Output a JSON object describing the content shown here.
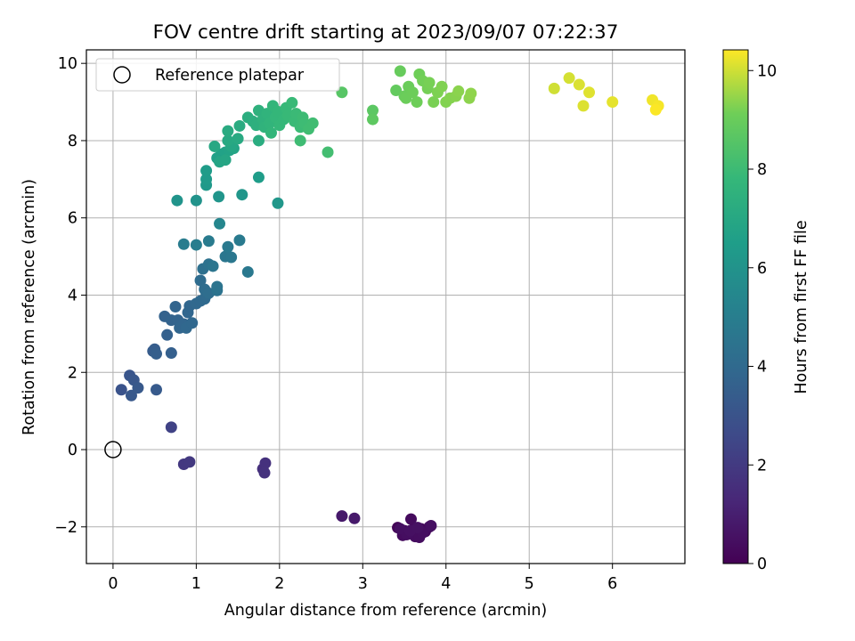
{
  "chart_data": {
    "type": "scatter",
    "title": "FOV centre drift starting at 2023/09/07 07:22:37",
    "xlabel": "Angular distance from reference (arcmin)",
    "ylabel": "Rotation from reference (arcmin)",
    "colorbar_label": "Hours from first FF file",
    "xlim": [
      -0.32,
      6.87
    ],
    "ylim": [
      -2.95,
      10.35
    ],
    "clim": [
      0,
      10.42
    ],
    "xticks": [
      0,
      1,
      2,
      3,
      4,
      5,
      6
    ],
    "yticks": [
      -2,
      0,
      2,
      4,
      6,
      8,
      10
    ],
    "cticks": [
      0,
      2,
      4,
      6,
      8,
      10
    ],
    "grid": true,
    "colormap": "viridis",
    "legend": {
      "position": "top-left",
      "entries": [
        {
          "label": "Reference platepar",
          "marker": "open-circle"
        }
      ]
    },
    "reference": {
      "x": 0,
      "y": 0
    },
    "points": [
      [
        3.42,
        -2.02,
        0.1
      ],
      [
        3.5,
        -2.1,
        0.15
      ],
      [
        3.55,
        -2.15,
        0.18
      ],
      [
        3.6,
        -2.08,
        0.2
      ],
      [
        3.65,
        -2.18,
        0.22
      ],
      [
        3.7,
        -2.05,
        0.25
      ],
      [
        3.75,
        -2.12,
        0.28
      ],
      [
        3.8,
        -2.0,
        0.3
      ],
      [
        3.58,
        -1.8,
        0.32
      ],
      [
        3.48,
        -2.22,
        0.35
      ],
      [
        3.63,
        -2.25,
        0.38
      ],
      [
        3.68,
        -2.27,
        0.4
      ],
      [
        3.53,
        -2.2,
        0.42
      ],
      [
        3.72,
        -2.15,
        0.44
      ],
      [
        3.45,
        -2.05,
        0.46
      ],
      [
        3.82,
        -1.97,
        0.48
      ],
      [
        3.57,
        -2.1,
        0.5
      ],
      [
        3.66,
        -2.02,
        0.52
      ],
      [
        2.75,
        -1.72,
        0.8
      ],
      [
        2.9,
        -1.78,
        0.85
      ],
      [
        1.8,
        -0.5,
        1.6
      ],
      [
        1.83,
        -0.35,
        1.65
      ],
      [
        1.82,
        -0.6,
        1.7
      ],
      [
        0.85,
        -0.38,
        1.9
      ],
      [
        0.92,
        -0.32,
        1.95
      ],
      [
        0.7,
        0.58,
        2.3
      ],
      [
        0.1,
        1.55,
        3.0
      ],
      [
        0.2,
        1.92,
        3.1
      ],
      [
        0.25,
        1.8,
        3.15
      ],
      [
        0.22,
        1.4,
        3.2
      ],
      [
        0.3,
        1.6,
        3.25
      ],
      [
        0.52,
        1.55,
        3.3
      ],
      [
        0.48,
        2.55,
        3.4
      ],
      [
        0.5,
        2.6,
        3.45
      ],
      [
        0.52,
        2.48,
        3.5
      ],
      [
        0.7,
        2.5,
        3.55
      ],
      [
        0.65,
        2.97,
        3.6
      ],
      [
        0.62,
        3.45,
        3.65
      ],
      [
        0.7,
        3.35,
        3.7
      ],
      [
        0.78,
        3.35,
        3.75
      ],
      [
        0.75,
        3.7,
        3.78
      ],
      [
        0.8,
        3.15,
        3.8
      ],
      [
        0.85,
        3.25,
        3.82
      ],
      [
        0.9,
        3.55,
        3.85
      ],
      [
        0.92,
        3.72,
        3.88
      ],
      [
        0.88,
        3.15,
        3.9
      ],
      [
        0.95,
        3.28,
        3.92
      ],
      [
        1.0,
        3.78,
        3.95
      ],
      [
        1.05,
        3.85,
        3.98
      ],
      [
        1.1,
        3.9,
        4.0
      ],
      [
        1.12,
        4.0,
        4.05
      ],
      [
        1.05,
        4.38,
        4.1
      ],
      [
        1.1,
        4.15,
        4.15
      ],
      [
        1.15,
        4.05,
        4.2
      ],
      [
        1.08,
        4.68,
        4.3
      ],
      [
        1.15,
        4.8,
        4.4
      ],
      [
        1.25,
        4.12,
        4.45
      ],
      [
        1.25,
        4.22,
        4.5
      ],
      [
        1.2,
        4.75,
        4.55
      ],
      [
        1.35,
        5.0,
        4.6
      ],
      [
        1.42,
        4.98,
        4.65
      ],
      [
        1.62,
        4.6,
        4.7
      ],
      [
        1.38,
        5.25,
        4.75
      ],
      [
        1.52,
        5.42,
        4.8
      ],
      [
        1.15,
        5.4,
        4.85
      ],
      [
        0.85,
        5.32,
        4.9
      ],
      [
        1.0,
        5.3,
        4.95
      ],
      [
        1.28,
        5.85,
        5.4
      ],
      [
        1.0,
        6.45,
        6.0
      ],
      [
        0.77,
        6.45,
        6.05
      ],
      [
        1.27,
        6.55,
        6.1
      ],
      [
        1.55,
        6.6,
        6.15
      ],
      [
        1.98,
        6.38,
        6.2
      ],
      [
        1.12,
        6.85,
        6.3
      ],
      [
        1.12,
        7.0,
        6.35
      ],
      [
        1.12,
        7.22,
        6.4
      ],
      [
        1.75,
        7.05,
        6.45
      ],
      [
        1.25,
        7.55,
        6.6
      ],
      [
        1.3,
        7.65,
        6.65
      ],
      [
        1.35,
        7.7,
        6.7
      ],
      [
        1.4,
        7.75,
        6.75
      ],
      [
        1.45,
        7.8,
        6.8
      ],
      [
        1.28,
        7.45,
        6.85
      ],
      [
        1.35,
        7.5,
        6.9
      ],
      [
        1.42,
        7.85,
        6.95
      ],
      [
        1.22,
        7.85,
        7.0
      ],
      [
        1.38,
        8.0,
        7.05
      ],
      [
        1.5,
        8.05,
        7.1
      ],
      [
        1.38,
        8.25,
        7.15
      ],
      [
        1.52,
        8.38,
        7.2
      ],
      [
        1.75,
        8.0,
        7.25
      ],
      [
        1.62,
        8.6,
        7.3
      ],
      [
        1.68,
        8.5,
        7.35
      ],
      [
        1.72,
        8.4,
        7.4
      ],
      [
        1.75,
        8.78,
        7.45
      ],
      [
        1.8,
        8.55,
        7.5
      ],
      [
        1.82,
        8.35,
        7.55
      ],
      [
        1.85,
        8.7,
        7.6
      ],
      [
        1.88,
        8.45,
        7.65
      ],
      [
        1.9,
        8.2,
        7.7
      ],
      [
        1.92,
        8.9,
        7.72
      ],
      [
        1.95,
        8.6,
        7.75
      ],
      [
        1.98,
        8.75,
        7.78
      ],
      [
        2.0,
        8.4,
        7.8
      ],
      [
        2.05,
        8.55,
        7.82
      ],
      [
        2.08,
        8.85,
        7.85
      ],
      [
        2.1,
        8.65,
        7.88
      ],
      [
        2.15,
        8.98,
        7.9
      ],
      [
        2.18,
        8.5,
        7.92
      ],
      [
        2.2,
        8.7,
        7.95
      ],
      [
        2.25,
        8.35,
        7.98
      ],
      [
        2.28,
        8.6,
        8.0
      ],
      [
        2.3,
        8.45,
        8.02
      ],
      [
        2.25,
        8.0,
        8.05
      ],
      [
        2.35,
        8.3,
        8.08
      ],
      [
        2.4,
        8.45,
        8.1
      ],
      [
        2.58,
        7.7,
        8.15
      ],
      [
        2.75,
        9.25,
        8.6
      ],
      [
        3.12,
        8.78,
        8.7
      ],
      [
        3.12,
        8.55,
        8.75
      ],
      [
        3.4,
        9.3,
        8.9
      ],
      [
        3.45,
        9.8,
        8.95
      ],
      [
        3.5,
        9.15,
        9.0
      ],
      [
        3.55,
        9.4,
        9.02
      ],
      [
        3.52,
        9.1,
        9.05
      ],
      [
        3.6,
        9.25,
        9.08
      ],
      [
        3.65,
        9.0,
        9.1
      ],
      [
        3.68,
        9.72,
        9.12
      ],
      [
        3.72,
        9.55,
        9.15
      ],
      [
        3.78,
        9.35,
        9.18
      ],
      [
        3.8,
        9.5,
        9.2
      ],
      [
        3.85,
        9.0,
        9.22
      ],
      [
        3.9,
        9.25,
        9.25
      ],
      [
        3.95,
        9.4,
        9.28
      ],
      [
        4.0,
        9.0,
        9.3
      ],
      [
        4.05,
        9.1,
        9.32
      ],
      [
        4.12,
        9.15,
        9.35
      ],
      [
        4.15,
        9.28,
        9.38
      ],
      [
        4.28,
        9.1,
        9.4
      ],
      [
        4.3,
        9.22,
        9.42
      ],
      [
        5.3,
        9.35,
        10.0
      ],
      [
        5.48,
        9.62,
        10.05
      ],
      [
        5.6,
        9.45,
        10.1
      ],
      [
        5.65,
        8.9,
        10.12
      ],
      [
        5.72,
        9.25,
        10.15
      ],
      [
        6.0,
        9.0,
        10.2
      ],
      [
        6.48,
        9.05,
        10.3
      ],
      [
        6.55,
        8.9,
        10.35
      ],
      [
        6.52,
        8.8,
        10.4
      ]
    ]
  }
}
